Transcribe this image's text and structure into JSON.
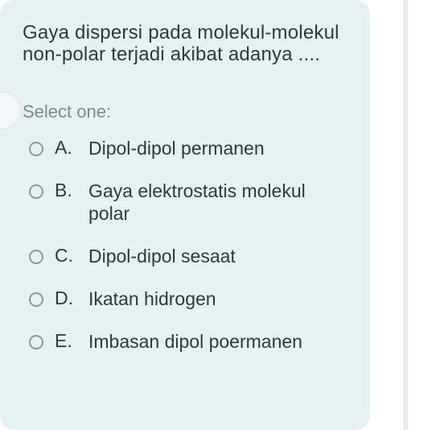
{
  "card": {
    "background_color": "#e6f2f2",
    "border_radius": 18
  },
  "question": {
    "text": "Gaya dispersi pada molekul-molekul non-polar terjadi akibat adanya ....",
    "color": "#2a3b3b",
    "fontsize": 24
  },
  "select_label": {
    "text": "Select one:",
    "color": "#7a8b8b",
    "fontsize": 22
  },
  "options": [
    {
      "letter": "A.",
      "text": "Dipol-dipol permanen"
    },
    {
      "letter": "B.",
      "text": "Gaya elektrostatis molekul polar"
    },
    {
      "letter": "C.",
      "text": "Dipol-dipol sesaat"
    },
    {
      "letter": "D.",
      "text": "Ikatan hidrogen"
    },
    {
      "letter": "E.",
      "text": "Imbasan dipol poermanen"
    }
  ],
  "radio_style": {
    "border_color": "#8a9a9a",
    "size": 18
  }
}
